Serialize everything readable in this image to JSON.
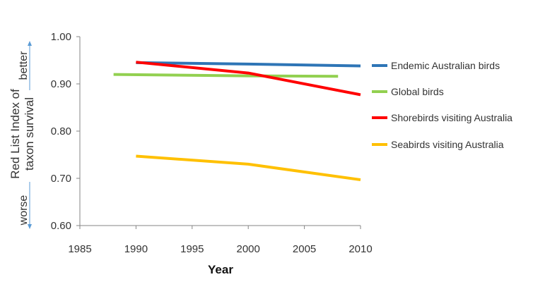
{
  "chart_data": {
    "type": "line",
    "title": "",
    "xlabel": "Year",
    "ylabel_lines": [
      "Red List Index of",
      "taxon survival"
    ],
    "ylabel_better": "better",
    "ylabel_worse": "worse",
    "xlim": [
      1985,
      2010
    ],
    "ylim": [
      0.6,
      1.0
    ],
    "x_ticks": [
      "1985",
      "1990",
      "1995",
      "2000",
      "2005",
      "2010"
    ],
    "y_ticks": [
      "0.60",
      "0.70",
      "0.80",
      "0.90",
      "1.00"
    ],
    "grid": false,
    "legend_position": "right",
    "series": [
      {
        "name": "Endemic Australian birds",
        "color": "#2e75b6",
        "x": [
          1990,
          2000,
          2010
        ],
        "y": [
          0.945,
          0.942,
          0.938
        ]
      },
      {
        "name": "Global birds",
        "color": "#92d050",
        "x": [
          1988,
          2000,
          2008
        ],
        "y": [
          0.92,
          0.917,
          0.916
        ]
      },
      {
        "name": "Shorebirds visiting Australia",
        "color": "#ff0000",
        "x": [
          1990,
          2000,
          2010
        ],
        "y": [
          0.946,
          0.923,
          0.877
        ]
      },
      {
        "name": "Seabirds visiting Australia",
        "color": "#ffc000",
        "x": [
          1990,
          2000,
          2010
        ],
        "y": [
          0.747,
          0.73,
          0.697
        ]
      }
    ]
  }
}
